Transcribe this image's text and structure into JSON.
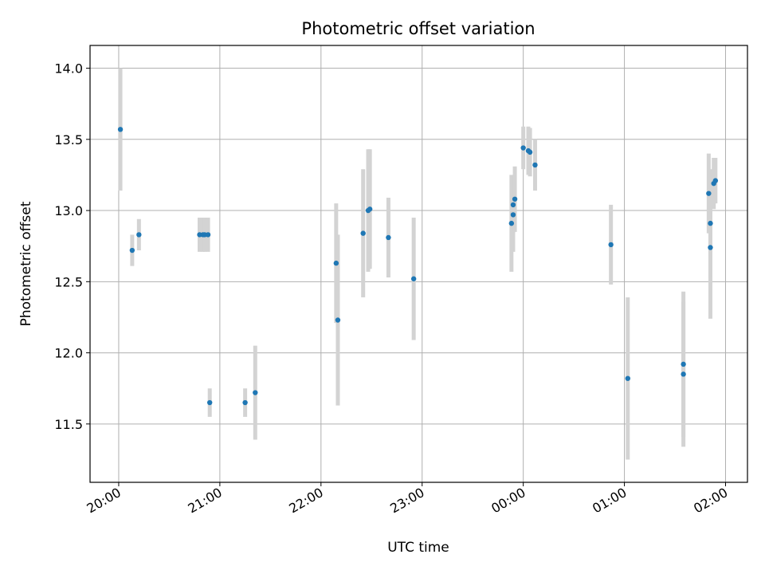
{
  "chart_data": {
    "type": "scatter",
    "title": "Photometric offset variation",
    "xlabel": "UTC time",
    "ylabel": "Photometric offset",
    "x_unit": "time (HH:MM, UTC)",
    "xlim": [
      "19:43",
      "02:13"
    ],
    "ylim": [
      11.09,
      14.16
    ],
    "x_ticks": [
      "20:00",
      "21:00",
      "22:00",
      "23:00",
      "00:00",
      "01:00",
      "02:00"
    ],
    "y_ticks": [
      "11.5",
      "12.0",
      "12.5",
      "13.0",
      "13.5",
      "14.0"
    ],
    "grid": true,
    "legend": "none",
    "colors": {
      "marker": "#1f77b4",
      "error_bar": "#d3d3d3",
      "grid": "#b0b0b0"
    },
    "points": [
      {
        "x": "20:01",
        "y": 13.57,
        "err": 0.43
      },
      {
        "x": "20:08",
        "y": 12.72,
        "err": 0.11
      },
      {
        "x": "20:12",
        "y": 12.83,
        "err": 0.11
      },
      {
        "x": "20:48",
        "y": 12.83,
        "err": 0.12
      },
      {
        "x": "20:50",
        "y": 12.83,
        "err": 0.12
      },
      {
        "x": "20:51",
        "y": 12.83,
        "err": 0.12
      },
      {
        "x": "20:53",
        "y": 12.83,
        "err": 0.12
      },
      {
        "x": "20:54",
        "y": 11.65,
        "err": 0.1
      },
      {
        "x": "21:15",
        "y": 11.65,
        "err": 0.1
      },
      {
        "x": "21:21",
        "y": 11.72,
        "err": 0.33
      },
      {
        "x": "22:09",
        "y": 12.63,
        "err": 0.42
      },
      {
        "x": "22:10",
        "y": 12.23,
        "err": 0.6
      },
      {
        "x": "22:25",
        "y": 12.84,
        "err": 0.45
      },
      {
        "x": "22:28",
        "y": 13.0,
        "err": 0.43
      },
      {
        "x": "22:29",
        "y": 13.01,
        "err": 0.42
      },
      {
        "x": "22:40",
        "y": 12.81,
        "err": 0.28
      },
      {
        "x": "22:55",
        "y": 12.52,
        "err": 0.43
      },
      {
        "x": "23:53",
        "y": 12.91,
        "err": 0.34
      },
      {
        "x": "23:54",
        "y": 12.97,
        "err": 0.26
      },
      {
        "x": "23:54",
        "y": 13.04,
        "err": 0.2
      },
      {
        "x": "23:55",
        "y": 13.08,
        "err": 0.23
      },
      {
        "x": "00:00",
        "y": 13.44,
        "err": 0.15
      },
      {
        "x": "00:03",
        "y": 13.42,
        "err": 0.17
      },
      {
        "x": "00:04",
        "y": 13.41,
        "err": 0.17
      },
      {
        "x": "00:07",
        "y": 13.32,
        "err": 0.18
      },
      {
        "x": "00:52",
        "y": 12.76,
        "err": 0.28
      },
      {
        "x": "01:02",
        "y": 11.82,
        "err": 0.57
      },
      {
        "x": "01:35",
        "y": 11.92,
        "err": 0.51
      },
      {
        "x": "01:35",
        "y": 11.85,
        "err": 0.51
      },
      {
        "x": "01:50",
        "y": 13.12,
        "err": 0.28
      },
      {
        "x": "01:51",
        "y": 12.91,
        "err": 0.38
      },
      {
        "x": "01:51",
        "y": 12.74,
        "err": 0.5
      },
      {
        "x": "01:53",
        "y": 13.19,
        "err": 0.18
      },
      {
        "x": "01:54",
        "y": 13.21,
        "err": 0.16
      }
    ]
  }
}
